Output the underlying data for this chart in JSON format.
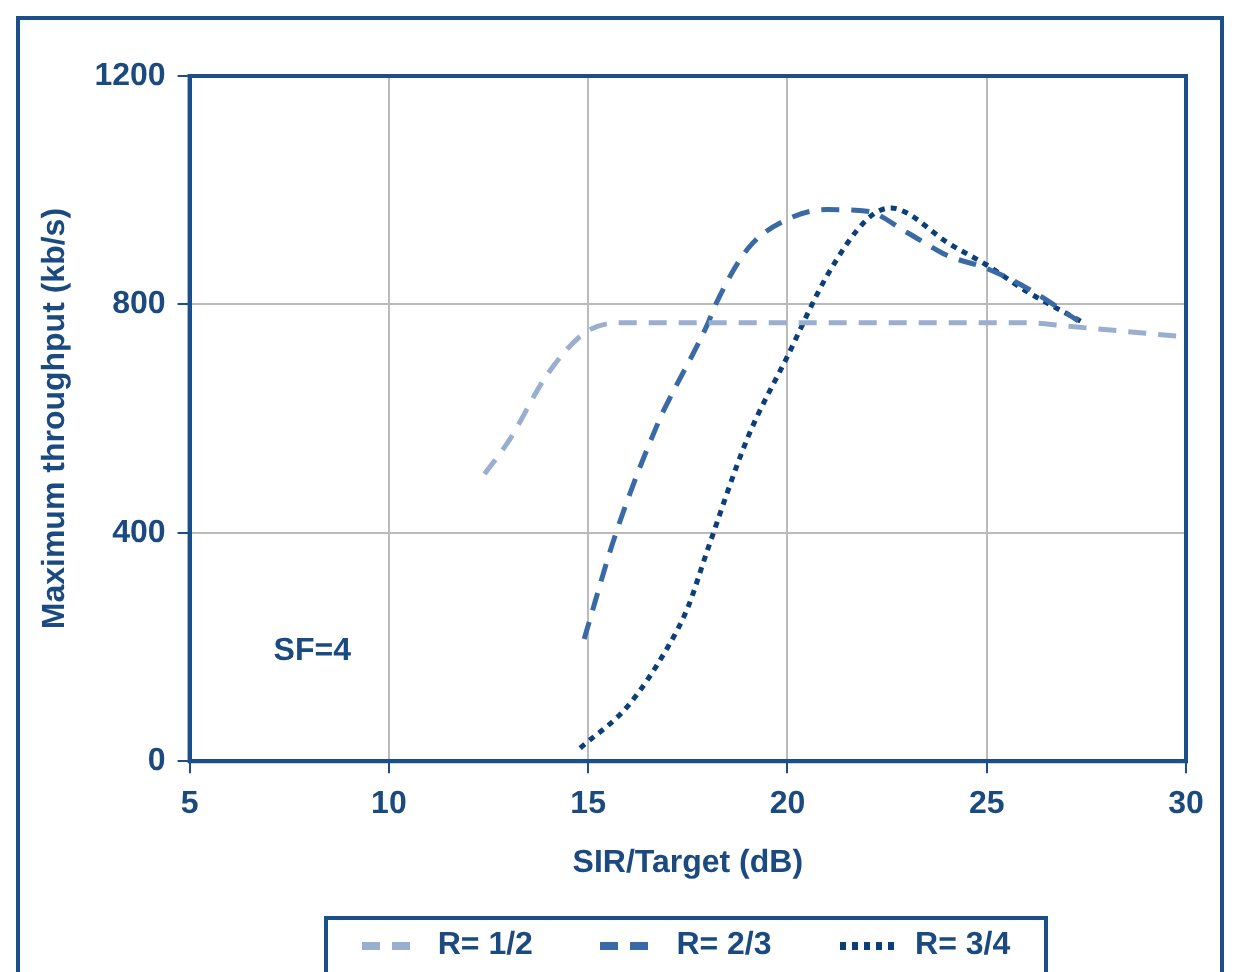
{
  "chart_data": {
    "type": "line",
    "xlabel": "SIR/Target (dB)",
    "ylabel": "Maximum throughput (kb/s)",
    "annotations": [
      "SF=4"
    ],
    "xlim": [
      5,
      30
    ],
    "xticks": [
      5,
      10,
      15,
      20,
      25,
      30
    ],
    "ylim": [
      0,
      1200
    ],
    "yticks": [
      0,
      400,
      800,
      1200
    ],
    "grid": true,
    "legend": "bottom",
    "marker": "none",
    "series": [
      {
        "name": "R= 1/2",
        "color": "#9aaed0",
        "line_style": "dashed",
        "x": [
          12.4,
          13,
          14,
          15,
          16,
          18,
          20,
          22,
          24,
          26,
          27,
          30
        ],
        "values": [
          503,
          560,
          680,
          754,
          768,
          768,
          768,
          768,
          768,
          768,
          762,
          743
        ]
      },
      {
        "name": "R= 2/3",
        "color": "#3a6aa6",
        "line_style": "dashed",
        "x": [
          14.9,
          15.7,
          16.8,
          17,
          18,
          18.2,
          19,
          20,
          21,
          22,
          23,
          24,
          25,
          26,
          27.3
        ],
        "values": [
          214,
          400,
          600,
          629,
          766,
          800,
          897,
          949,
          966,
          963,
          926,
          886,
          863,
          829,
          771
        ]
      },
      {
        "name": "R= 3/4",
        "color": "#0b3f7a",
        "line_style": "dotted",
        "x": [
          14.8,
          16,
          17,
          17.5,
          18,
          19,
          20,
          21,
          22,
          22.6,
          23,
          24,
          25,
          26,
          27.4
        ],
        "values": [
          23,
          97,
          200,
          269,
          371,
          566,
          709,
          851,
          949,
          969,
          960,
          909,
          869,
          823,
          769
        ]
      }
    ]
  }
}
